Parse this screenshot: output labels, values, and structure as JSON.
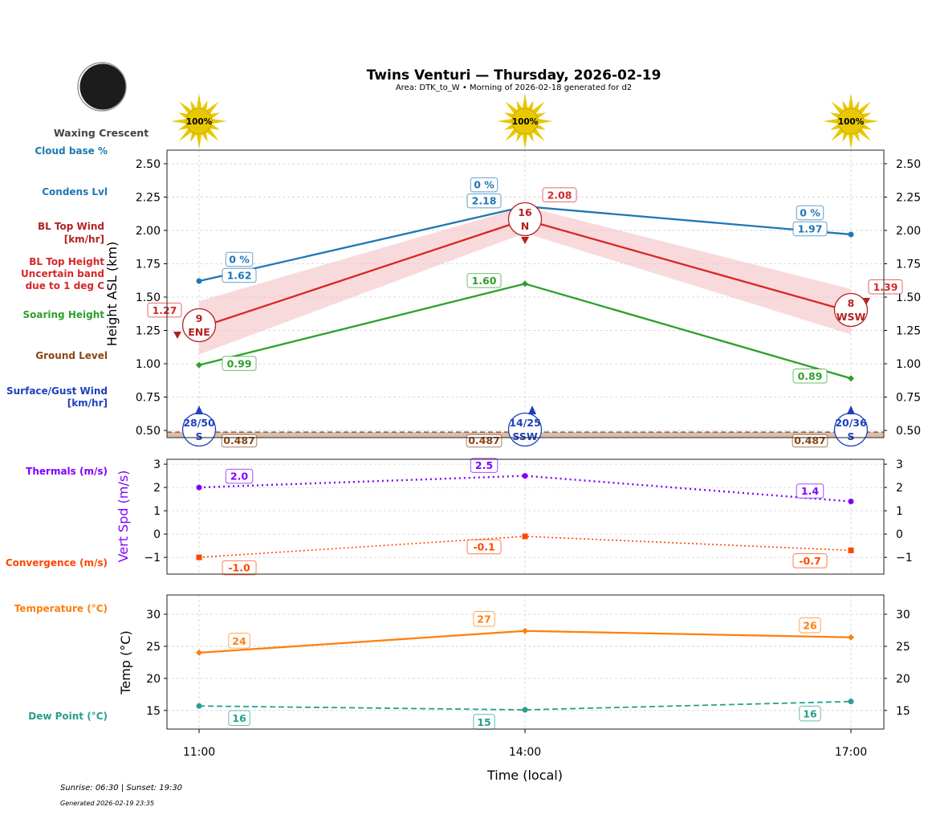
{
  "header": {
    "title": "Twins Venturi — Thursday, 2026-02-19",
    "subtitle": "Area: DTK_to_W • Morning of 2026-02-18 generated for d2",
    "moon_phase": "Waxing Crescent",
    "sun_percent": [
      "100%",
      "100%",
      "100%"
    ]
  },
  "side_labels": {
    "cloud_base": "Cloud base %",
    "condens": "Condens Lvl",
    "bl_wind_1": "BL Top Wind",
    "bl_wind_2": "[km/hr]",
    "bl_height_1": "BL Top Height",
    "bl_height_2": "Uncertain band",
    "bl_height_3": "due to 1 deg C",
    "soaring": "Soaring Height",
    "ground": "Ground Level",
    "surface_1": "Surface/Gust Wind",
    "surface_2": "[km/hr]",
    "thermals": "Thermals (m/s)",
    "convergence": "Convergence (m/s)",
    "temperature": "Temperature (°C)",
    "dewpoint": "Dew Point (°C)"
  },
  "footer": {
    "sun_times": "Sunrise: 06:30 | Sunset: 19:30",
    "generated": "Generated 2026-02-19 23:35"
  },
  "colors": {
    "cloud": "#1f77b4",
    "bl": "#d62728",
    "bl_band": "#f4c2c4",
    "soaring": "#2ca02c",
    "ground": "#8b4513",
    "surface": "#1f3fbf",
    "thermals": "#8000ff",
    "convergence": "#ff4500",
    "temperature": "#ff7f0e",
    "dewpoint": "#26a08f",
    "sun": "#e8c800"
  },
  "chart_data": [
    {
      "type": "line",
      "ylabel": "Height ASL (km)",
      "ylim": [
        0.446,
        2.602
      ],
      "yticks": [
        "0.50",
        "0.75",
        "1.00",
        "1.25",
        "1.50",
        "1.75",
        "2.00",
        "2.25",
        "2.50"
      ],
      "x": [
        "11:00",
        "14:00",
        "17:00"
      ],
      "grid": true,
      "series": {
        "condens_lvl": {
          "values": [
            1.62,
            2.18,
            1.97
          ],
          "labels": [
            "1.62",
            "2.18",
            "1.97"
          ],
          "cloud_pct": [
            "0 %",
            "0 %",
            "0 %"
          ]
        },
        "bl_top": {
          "values": [
            1.27,
            2.08,
            1.39
          ],
          "labels": [
            "1.27",
            "2.08",
            "1.39"
          ],
          "band": [
            0.2,
            0.1,
            0.17
          ],
          "wind_speed": [
            "9",
            "16",
            "8"
          ],
          "wind_dir": [
            "ENE",
            "N",
            "WSW"
          ]
        },
        "soaring": {
          "values": [
            0.99,
            1.6,
            0.89
          ],
          "labels": [
            "0.99",
            "1.60",
            "0.89"
          ]
        },
        "ground": {
          "values": [
            0.487,
            0.487,
            0.487
          ],
          "labels": [
            "0.487",
            "0.487",
            "0.487"
          ]
        },
        "surface_wind": {
          "speed": [
            "28/50",
            "14/25",
            "20/36"
          ],
          "dir": [
            "S",
            "SSW",
            "S"
          ]
        }
      }
    },
    {
      "type": "line",
      "ylabel": "Vert Spd (m/s)",
      "ylim": [
        -1.72,
        3.21
      ],
      "yticks": [
        "−1",
        "0",
        "1",
        "2",
        "3"
      ],
      "x": [
        "11:00",
        "14:00",
        "17:00"
      ],
      "series": {
        "thermals": {
          "values": [
            2.0,
            2.5,
            1.4
          ],
          "labels": [
            "2.0",
            "2.5",
            "1.4"
          ]
        },
        "convergence": {
          "values": [
            -1.0,
            -0.1,
            -0.7
          ],
          "labels": [
            "-1.0",
            "-0.1",
            "-0.7"
          ]
        }
      }
    },
    {
      "type": "line",
      "ylabel": "Temp (°C)",
      "xlabel": "Time (local)",
      "ylim": [
        12.1,
        33
      ],
      "yticks": [
        "15",
        "20",
        "25",
        "30"
      ],
      "x": [
        "11:00",
        "14:00",
        "17:00"
      ],
      "series": {
        "temperature": {
          "values": [
            24.0,
            27.4,
            26.4
          ],
          "labels": [
            "24",
            "27",
            "26"
          ]
        },
        "dewpoint": {
          "values": [
            15.7,
            15.1,
            16.4
          ],
          "labels": [
            "16",
            "15",
            "16"
          ]
        }
      }
    }
  ]
}
